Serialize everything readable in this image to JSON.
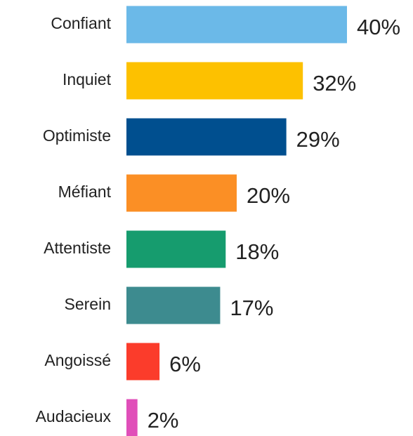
{
  "chart_data": {
    "type": "bar",
    "orientation": "horizontal",
    "categories": [
      "Confiant",
      "Inquiet",
      "Optimiste",
      "Méfiant",
      "Attentiste",
      "Serein",
      "Angoissé",
      "Audacieux"
    ],
    "values": [
      40,
      32,
      29,
      20,
      18,
      17,
      6,
      2
    ],
    "value_labels": [
      "40%",
      "32%",
      "29%",
      "20%",
      "18%",
      "17%",
      "6%",
      "2%"
    ],
    "colors": [
      "#6bb9e8",
      "#fdc100",
      "#004f8f",
      "#fb8f25",
      "#169c6e",
      "#3d8b8f",
      "#fb3c2b",
      "#e04fb9"
    ]
  }
}
